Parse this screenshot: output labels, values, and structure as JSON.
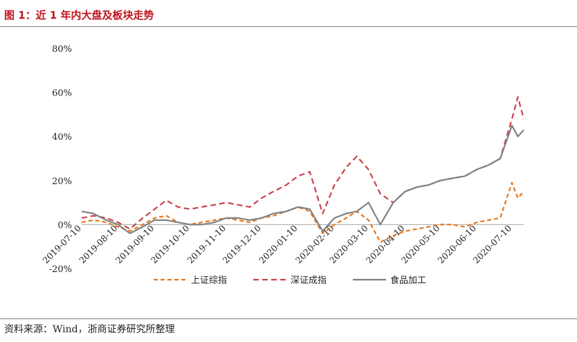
{
  "header": {
    "title": "图 1：近 1 年内大盘及板块走势"
  },
  "footer": {
    "source": "资料来源：Wind，浙商证券研究所整理"
  },
  "chart_data": {
    "type": "line",
    "title": "",
    "xlabel": "",
    "ylabel": "",
    "ylim": [
      -20,
      80
    ],
    "y_ticks": [
      "80%",
      "60%",
      "40%",
      "20%",
      "0%",
      "-20%"
    ],
    "y_tick_values": [
      80,
      60,
      40,
      20,
      0,
      -20
    ],
    "x_ticks": [
      "2019-07-10",
      "2019-08-10",
      "2019-09-10",
      "2019-10-10",
      "2019-11-10",
      "2019-12-10",
      "2020-01-10",
      "2020-02-10",
      "2020-03-10",
      "2020-04-10",
      "2020-05-10",
      "2020-06-10",
      "2020-07-10"
    ],
    "grid": false,
    "legend_position": "bottom",
    "x": [
      "2019-07-10",
      "2019-07-20",
      "2019-07-31",
      "2019-08-10",
      "2019-08-20",
      "2019-08-31",
      "2019-09-10",
      "2019-09-20",
      "2019-09-30",
      "2019-10-10",
      "2019-10-20",
      "2019-10-31",
      "2019-11-10",
      "2019-11-20",
      "2019-11-30",
      "2019-12-10",
      "2019-12-20",
      "2019-12-31",
      "2020-01-10",
      "2020-01-20",
      "2020-01-31",
      "2020-02-10",
      "2020-02-20",
      "2020-02-29",
      "2020-03-10",
      "2020-03-20",
      "2020-03-31",
      "2020-04-10",
      "2020-04-20",
      "2020-04-30",
      "2020-05-10",
      "2020-05-20",
      "2020-05-31",
      "2020-06-10",
      "2020-06-20",
      "2020-06-30",
      "2020-07-10",
      "2020-07-15",
      "2020-07-20"
    ],
    "series": [
      {
        "name": "上证综指",
        "color": "#e8761b",
        "dash": "6,4",
        "values": [
          1,
          2,
          1,
          -1,
          -3,
          0,
          3,
          4,
          1,
          0,
          1,
          2,
          3,
          2,
          1,
          3,
          4,
          6,
          8,
          6,
          -4,
          0,
          3,
          6,
          2,
          -8,
          -5,
          -3,
          -2,
          -1,
          0,
          0,
          -1,
          1,
          2,
          3,
          19,
          12,
          15
        ]
      },
      {
        "name": "深证成指",
        "color": "#c9414c",
        "dash": "8,5",
        "values": [
          3,
          4,
          3,
          1,
          -2,
          3,
          7,
          11,
          8,
          7,
          8,
          9,
          10,
          9,
          8,
          12,
          15,
          18,
          22,
          24,
          5,
          18,
          26,
          31,
          25,
          14,
          10,
          15,
          17,
          18,
          20,
          21,
          22,
          25,
          27,
          30,
          48,
          58,
          48
        ]
      },
      {
        "name": "食品加工",
        "color": "#808080",
        "dash": "",
        "values": [
          6,
          5,
          2,
          0,
          -4,
          -1,
          2,
          2,
          1,
          0,
          0,
          1,
          3,
          3,
          2,
          3,
          5,
          6,
          8,
          7,
          -3,
          3,
          5,
          6,
          10,
          0,
          10,
          15,
          17,
          18,
          20,
          21,
          22,
          25,
          27,
          30,
          45,
          40,
          43
        ]
      }
    ]
  }
}
